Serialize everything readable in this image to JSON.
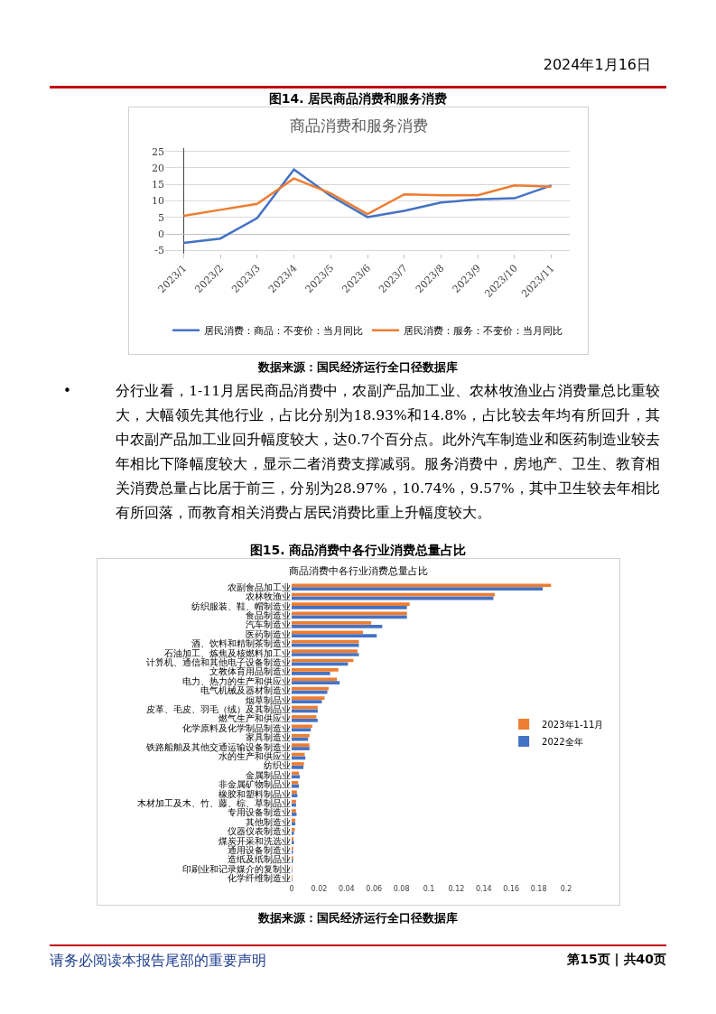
{
  "chart_data": [
    {
      "type": "other",
      "annotations": [
        "2024年1月16日"
      ]
    },
    {
      "type": "line",
      "title": "商品消费和服务消费",
      "categories": [
        "2023/1",
        "2023/2",
        "2023/3",
        "2023/4",
        "2023/5",
        "2023/6",
        "2023/7",
        "2023/8",
        "2023/9",
        "2023/10",
        "2023/11"
      ],
      "series": [
        {
          "name": "居民消费：商品：不变价：当月同比",
          "color": "#4472c4",
          "values": [
            -2.7,
            -1.4,
            4.8,
            19.5,
            11.5,
            5.1,
            7.0,
            9.5,
            10.5,
            10.8,
            14.7
          ]
        },
        {
          "name": "居民消费：服务：不变价：当月同比",
          "color": "#ed7d31",
          "values": [
            5.5,
            7.3,
            9.1,
            16.8,
            12.3,
            6.0,
            12.0,
            11.7,
            11.7,
            14.7,
            14.3
          ]
        }
      ],
      "ylim": [
        -6,
        26
      ],
      "yticks": [
        -5,
        0,
        5,
        10,
        15,
        20,
        25
      ],
      "grid": "y",
      "legend": "bottom",
      "annotations": [
        "图14. 居民商品消费和服务消费",
        "数据来源：国民经济运行全口径数据库"
      ]
    },
    {
      "type": "other",
      "annotations": [
        "•",
        "分行业看，1-11月居民商品消费中，农副产品加工业、农林牧渔业占消费量总比重较大，大幅领先其他行业，占比分别为18.93%和14.8%，占比较去年均有所回升，其中农副产品加工业回升幅度较大，达0.7个百分点。此外汽车制造业和医药制造业较去年相比下降幅度较大，显示二者消费支撑减弱。服务消费中，房地产、卫生、教育相关消费总量占比居于前三，分别为28.97%，10.74%，9.57%，其中卫生较去年相比有所回落，而教育相关消费占居民消费比重上升幅度较大。"
      ]
    },
    {
      "type": "bar",
      "orientation": "horizontal",
      "title": "商品消费中各行业消费总量占比",
      "categories": [
        "农副食品加工业",
        "农林牧渔业",
        "纺织服装、鞋、帽制造业",
        "食品制造业",
        "汽车制造业",
        "医药制造业",
        "酒、饮料和精制茶制造业",
        "石油加工、炼焦及核燃料加工业",
        "计算机、通信和其他电子设备制造业",
        "文教体育用品制造业",
        "电力、热力的生产和供应业",
        "电气机械及器材制造业",
        "烟草制品业",
        "皮革、毛皮、羽毛（绒）及其制品业",
        "燃气生产和供应业",
        "化学原料及化学制品制造业",
        "家具制造业",
        "铁路船舶及其他交通运输设备制造业",
        "水的生产和供应业",
        "纺织业",
        "金属制品业",
        "非金属矿物制品业",
        "橡胶和塑料制品业",
        "木材加工及木、竹、藤、棕、草制品业",
        "专用设备制造业",
        "其他制造业",
        "仪器仪表制造业",
        "煤炭开采和洗选业",
        "通用设备制造业",
        "造纸及纸制品业",
        "印刷业和记录媒介的复制业",
        "化学纤维制造业"
      ],
      "series": [
        {
          "name": "2023年1-11月",
          "color": "#ed7d31",
          "values": [
            0.189,
            0.148,
            0.086,
            0.084,
            0.058,
            0.052,
            0.049,
            0.048,
            0.045,
            0.034,
            0.033,
            0.027,
            0.024,
            0.019,
            0.018,
            0.015,
            0.013,
            0.013,
            0.0095,
            0.009,
            0.0053,
            0.0048,
            0.0038,
            0.0032,
            0.0032,
            0.0027,
            0.0023,
            0.0013,
            0.0011,
            0.0011,
            0.0004,
            0.0004
          ]
        },
        {
          "name": "2022全年",
          "color": "#4472c4",
          "values": [
            0.183,
            0.147,
            0.084,
            0.084,
            0.066,
            0.062,
            0.049,
            0.049,
            0.041,
            0.028,
            0.035,
            0.026,
            0.022,
            0.019,
            0.019,
            0.014,
            0.012,
            0.013,
            0.01,
            0.0086,
            0.006,
            0.0053,
            0.0042,
            0.0032,
            0.0036,
            0.0027,
            0.0017,
            0.0017,
            0.001,
            0.001,
            0.0004,
            0.0004
          ]
        }
      ],
      "xlim": [
        0,
        0.2
      ],
      "xticks": [
        0,
        0.02,
        0.04,
        0.06,
        0.08,
        0.1,
        0.12,
        0.14,
        0.16,
        0.18,
        0.2
      ],
      "legend": "right",
      "annotations": [
        "图15. 商品消费中各行业消费总量占比",
        "数据来源：国民经济运行全口径数据库"
      ]
    },
    {
      "type": "other",
      "annotations": [
        "请务必阅读本报告尾部的重要声明",
        "第15页 | 共40页"
      ]
    }
  ]
}
